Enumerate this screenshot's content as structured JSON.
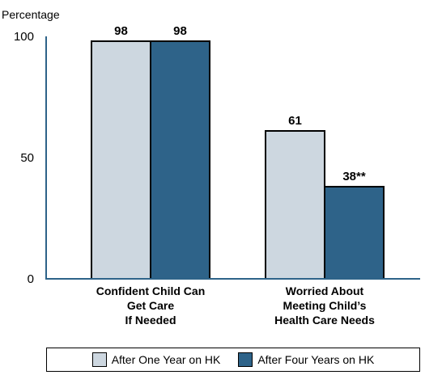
{
  "chart_data": {
    "type": "bar",
    "ylabel": "Percentage",
    "ylim": [
      0,
      100
    ],
    "yticks": [
      0,
      50,
      100
    ],
    "grid": false,
    "legend_position": "bottom",
    "categories": [
      [
        "Confident Child Can",
        "Get Care",
        "If Needed"
      ],
      [
        "Worried About",
        "Meeting Child’s",
        "Health Care Needs"
      ]
    ],
    "series": [
      {
        "name": "After One Year on HK",
        "color": "#cdd7e0",
        "values": [
          98,
          61
        ],
        "labels": [
          "98",
          "61"
        ]
      },
      {
        "name": "After Four Years on HK",
        "color": "#2e6389",
        "values": [
          98,
          38
        ],
        "labels": [
          "98",
          "38**"
        ]
      }
    ],
    "axis_color": "#2e6389"
  }
}
